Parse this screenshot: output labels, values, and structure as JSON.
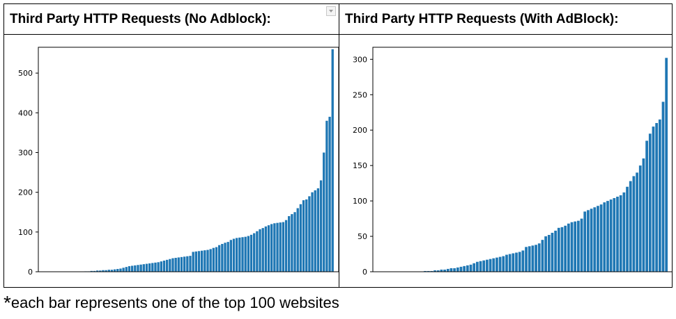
{
  "panels": [
    {
      "title": "Third Party HTTP Requests (No Adblock):"
    },
    {
      "title": "Third Party HTTP Requests (With AdBlock):"
    }
  ],
  "footnote": {
    "star": "*",
    "text": "each bar represents one of the top 100 websites"
  },
  "colors": {
    "bar": "#1f77b4",
    "axis": "#000000",
    "background": "#ffffff"
  },
  "chart_data": [
    {
      "type": "bar",
      "title": "Third Party HTTP Requests (No Adblock):",
      "xlabel": "",
      "ylabel": "",
      "ylim": [
        0,
        565
      ],
      "yticks": [
        0,
        100,
        200,
        300,
        400,
        500
      ],
      "grid": false,
      "values": [
        0,
        0,
        0,
        0,
        0,
        0,
        0,
        0,
        0,
        0,
        0,
        0,
        0,
        1,
        1,
        2,
        2,
        3,
        3,
        4,
        4,
        5,
        5,
        6,
        7,
        8,
        10,
        12,
        14,
        15,
        16,
        17,
        18,
        19,
        20,
        21,
        22,
        23,
        24,
        26,
        28,
        30,
        32,
        34,
        35,
        36,
        37,
        38,
        39,
        40,
        50,
        51,
        52,
        53,
        54,
        55,
        57,
        60,
        62,
        67,
        70,
        73,
        75,
        80,
        83,
        85,
        86,
        87,
        88,
        90,
        93,
        97,
        102,
        107,
        110,
        114,
        117,
        120,
        122,
        123,
        124,
        125,
        130,
        140,
        145,
        150,
        160,
        170,
        180,
        182,
        190,
        200,
        205,
        210,
        230,
        300,
        380,
        390,
        560
      ]
    },
    {
      "type": "bar",
      "title": "Third Party HTTP Requests (With AdBlock):",
      "xlabel": "",
      "ylabel": "",
      "ylim": [
        0,
        317
      ],
      "yticks": [
        0,
        50,
        100,
        150,
        200,
        250,
        300
      ],
      "grid": false,
      "values": [
        0,
        0,
        0,
        0,
        0,
        0,
        0,
        0,
        0,
        0,
        0,
        0,
        0,
        1,
        1,
        1,
        2,
        2,
        3,
        3,
        4,
        5,
        5,
        6,
        7,
        8,
        9,
        10,
        12,
        14,
        15,
        16,
        17,
        18,
        19,
        20,
        21,
        22,
        24,
        25,
        26,
        27,
        28,
        30,
        35,
        36,
        37,
        38,
        40,
        45,
        50,
        52,
        55,
        58,
        62,
        63,
        65,
        68,
        70,
        71,
        72,
        75,
        85,
        87,
        89,
        91,
        93,
        95,
        98,
        100,
        102,
        104,
        106,
        108,
        112,
        120,
        128,
        135,
        140,
        150,
        160,
        185,
        195,
        205,
        210,
        215,
        240,
        302
      ]
    }
  ]
}
